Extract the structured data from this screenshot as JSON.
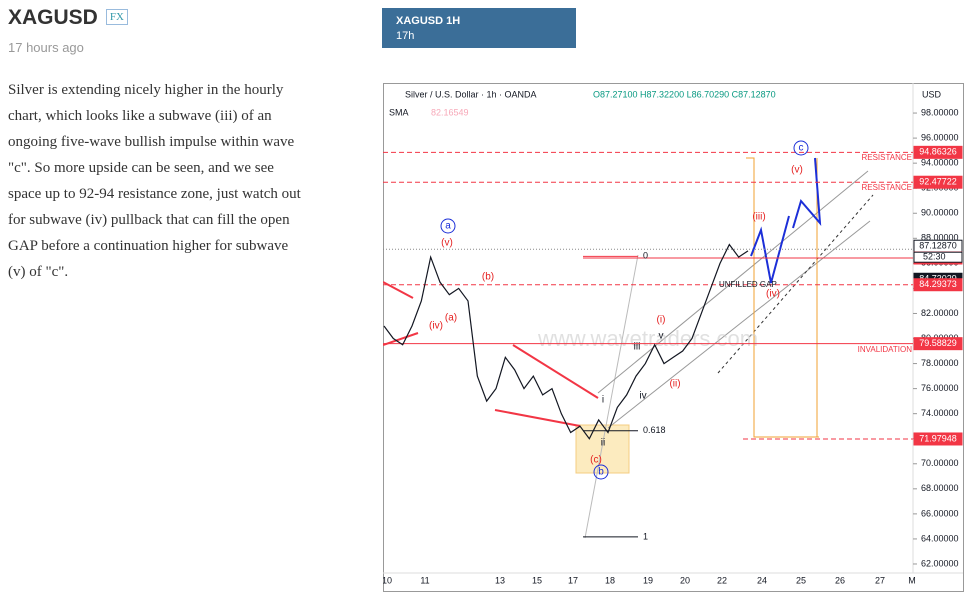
{
  "article": {
    "title": "XAGUSD",
    "tag": "FX",
    "time": "17 hours ago",
    "body": "Silver is extending nicely higher in the hourly chart, which looks like a subwave (iii) of an ongoing five-wave bullish impulse within wave \"c\". So more upside can be seen, and we see space up to 92-94 resistance zone, just watch out for subwave (iv) pullback that can fill the open GAP before a continuation higher for subwave (v) of \"c\"."
  },
  "tab": {
    "title": "XAGUSD 1H",
    "time": "17h"
  },
  "chart": {
    "symbol": "Silver / U.S. Dollar · 1h · OANDA",
    "ohlc": "O87.27100 H87.32200 L86.70290 C87.12870",
    "indicator": "SMA",
    "indicator_value": "82.16549",
    "currency": "USD",
    "watermark": "www.wavetraders.com",
    "ylim": [
      61.28,
      99.92
    ],
    "yticks": [
      {
        "value": 62,
        "label": "62.00000"
      },
      {
        "value": 64,
        "label": "64.00000"
      },
      {
        "value": 66,
        "label": "66.00000"
      },
      {
        "value": 68,
        "label": "68.00000"
      },
      {
        "value": 70,
        "label": "70.00000"
      },
      {
        "value": 72,
        "label": "72.00000"
      },
      {
        "value": 74,
        "label": "74.00000"
      },
      {
        "value": 76,
        "label": "76.00000"
      },
      {
        "value": 78,
        "label": "78.00000"
      },
      {
        "value": 80,
        "label": "80.00000"
      },
      {
        "value": 82,
        "label": "82.00000"
      },
      {
        "value": 84,
        "label": "84.00000"
      },
      {
        "value": 86,
        "label": "86.00000"
      },
      {
        "value": 88,
        "label": "88.00000"
      },
      {
        "value": 90,
        "label": "90.00000"
      },
      {
        "value": 92,
        "label": "92.00000"
      },
      {
        "value": 94,
        "label": "94.00000"
      },
      {
        "value": 96,
        "label": "96.00000"
      },
      {
        "value": 98,
        "label": "98.00000"
      }
    ],
    "xtick_labels": [
      "10",
      "11",
      "13",
      "15",
      "17",
      "18",
      "19",
      "20",
      "22",
      "24",
      "25",
      "26",
      "27",
      "M"
    ],
    "close": [
      81,
      80,
      79.5,
      81,
      83,
      86.5,
      84.5,
      83.5,
      84,
      83,
      77,
      75,
      76,
      78.5,
      77.5,
      76,
      77,
      75.5,
      76,
      74,
      72.5,
      73,
      72,
      73.5,
      72.5,
      74.5,
      75.5,
      77,
      78,
      79.5,
      78,
      78.5,
      79,
      80,
      82,
      84,
      86,
      87.5,
      86.5,
      87
    ],
    "price_tags": [
      {
        "value": 94.86326,
        "label": "94.86326",
        "color": "#f23645"
      },
      {
        "value": 92.47722,
        "label": "92.47722",
        "color": "#f23645"
      },
      {
        "value": 87.1287,
        "label": "87.12870",
        "color": "#ffffff"
      },
      {
        "value": 86.42815,
        "label": "86.42815",
        "color": "#f23645"
      },
      {
        "value": 84.73029,
        "label": "84.73029",
        "color": "#131722"
      },
      {
        "value": 84.29373,
        "label": "84.29373",
        "color": "#f23645"
      },
      {
        "value": 79.58829,
        "label": "79.58829",
        "color": "#f23645"
      },
      {
        "value": 71.97948,
        "label": "71.97948",
        "color": "#f23645"
      }
    ],
    "countdown": "52:30",
    "level_texts": [
      "RESISTANCE",
      "RESISTANCE",
      "INVALIDATION",
      "UNFILLED GAP"
    ],
    "fib": [
      {
        "label": "0",
        "value": 86.56
      },
      {
        "label": "0.618",
        "value": 72.64
      },
      {
        "label": "1",
        "value": 64.16
      }
    ],
    "wave_labels": [
      "a",
      "(v)",
      "(b)",
      "(iv)",
      "(a)",
      "(i)",
      "v",
      "iii",
      "(ii)",
      "iv",
      "i",
      "ii",
      "(c)",
      "b",
      "(iii)",
      "(iv)",
      "(v)",
      "c"
    ]
  }
}
